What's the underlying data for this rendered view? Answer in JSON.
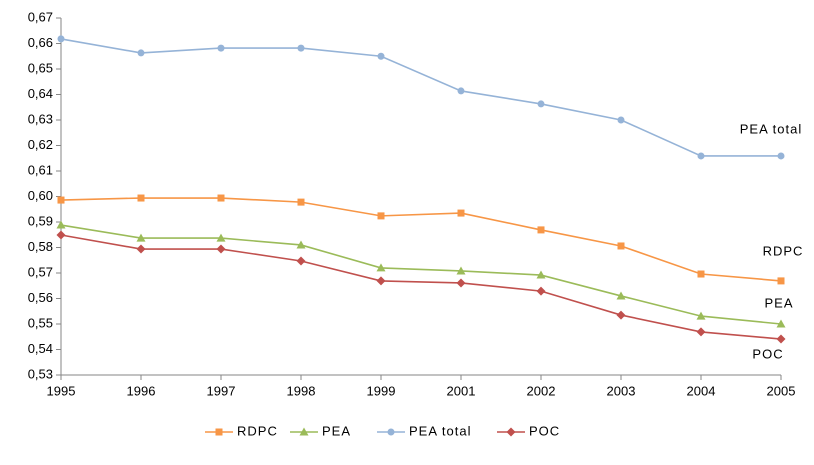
{
  "chart_data": {
    "type": "line",
    "categories": [
      "1995",
      "1996",
      "1997",
      "1998",
      "1999",
      "2001",
      "2002",
      "2003",
      "2004",
      "2005"
    ],
    "series": [
      {
        "name": "RDPC",
        "color": "#f79646",
        "marker": "square",
        "values": [
          0.5986,
          0.5994,
          0.5994,
          0.5978,
          0.5924,
          0.5935,
          0.5869,
          0.5806,
          0.5696,
          0.5669
        ]
      },
      {
        "name": "PEA",
        "color": "#9bbb59",
        "marker": "triangle",
        "values": [
          0.5888,
          0.5837,
          0.5837,
          0.581,
          0.572,
          0.5708,
          0.5692,
          0.561,
          0.5531,
          0.55
        ]
      },
      {
        "name": "PEA total",
        "color": "#95b3d7",
        "marker": "circle",
        "values": [
          0.6618,
          0.6563,
          0.6582,
          0.6582,
          0.655,
          0.6414,
          0.6363,
          0.63,
          0.6159,
          0.6159
        ]
      },
      {
        "name": "POC",
        "color": "#c0504d",
        "marker": "diamond",
        "values": [
          0.5849,
          0.5794,
          0.5794,
          0.5747,
          0.5669,
          0.5661,
          0.5629,
          0.5535,
          0.5469,
          0.5441
        ]
      }
    ],
    "annotations": [
      "PEA total",
      "RDPC",
      "PEA",
      "POC"
    ],
    "ylim": [
      0.53,
      0.67
    ],
    "yticks": [
      {
        "value": 0.53,
        "label": "0,53"
      },
      {
        "value": 0.54,
        "label": "0,54"
      },
      {
        "value": 0.55,
        "label": "0,55"
      },
      {
        "value": 0.56,
        "label": "0,56"
      },
      {
        "value": 0.57,
        "label": "0,57"
      },
      {
        "value": 0.58,
        "label": "0,58"
      },
      {
        "value": 0.59,
        "label": "0,59"
      },
      {
        "value": 0.6,
        "label": "0,60"
      },
      {
        "value": 0.61,
        "label": "0,61"
      },
      {
        "value": 0.62,
        "label": "0,62"
      },
      {
        "value": 0.63,
        "label": "0,63"
      },
      {
        "value": 0.64,
        "label": "0,64"
      },
      {
        "value": 0.65,
        "label": "0,65"
      },
      {
        "value": 0.66,
        "label": "0,66"
      },
      {
        "value": 0.67,
        "label": "0,67"
      }
    ],
    "grid": false,
    "legend": "bottom"
  }
}
